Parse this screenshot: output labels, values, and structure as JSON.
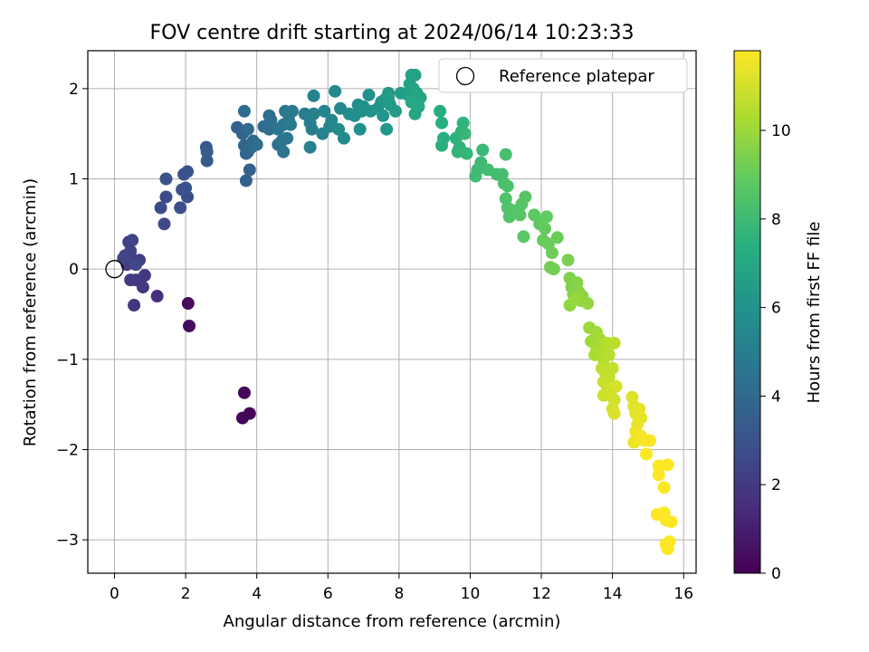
{
  "chart_data": {
    "type": "scatter",
    "title": "FOV centre drift starting at 2024/06/14 10:23:33",
    "xlabel": "Angular distance from reference (arcmin)",
    "ylabel": "Rotation from reference (arcmin)",
    "xlim": [
      -0.75,
      16.35
    ],
    "ylim": [
      -3.37,
      2.42
    ],
    "xticks": [
      0,
      2,
      4,
      6,
      8,
      10,
      12,
      14,
      16
    ],
    "yticks": [
      -3,
      -2,
      -1,
      0,
      1,
      2
    ],
    "grid": true,
    "legend": {
      "placement": "top-right",
      "entries": [
        "Reference platepar"
      ]
    },
    "reference_point": {
      "x": 0,
      "y": 0,
      "label": "Reference platepar"
    },
    "colorbar": {
      "label": "Hours from first FF file",
      "min": 0,
      "max": 11.8,
      "ticks": [
        0,
        2,
        4,
        6,
        8,
        10
      ],
      "colormap": "viridis"
    },
    "color_variable": "hours",
    "points": [
      {
        "x": 3.6,
        "y": -1.65,
        "c": 0.1
      },
      {
        "x": 3.8,
        "y": -1.6,
        "c": 0.15
      },
      {
        "x": 3.65,
        "y": -1.37,
        "c": 0.2
      },
      {
        "x": 2.1,
        "y": -0.63,
        "c": 0.3
      },
      {
        "x": 2.07,
        "y": -0.38,
        "c": 0.35
      },
      {
        "x": 1.2,
        "y": -0.3,
        "c": 1.6
      },
      {
        "x": 0.55,
        "y": -0.4,
        "c": 1.8
      },
      {
        "x": 0.8,
        "y": -0.2,
        "c": 1.9
      },
      {
        "x": 0.85,
        "y": -0.07,
        "c": 1.95
      },
      {
        "x": 0.6,
        "y": -0.12,
        "c": 2.0
      },
      {
        "x": 0.45,
        "y": -0.12,
        "c": 2.05
      },
      {
        "x": 0.7,
        "y": 0.1,
        "c": 2.1
      },
      {
        "x": 0.35,
        "y": 0.05,
        "c": 2.15
      },
      {
        "x": 0.5,
        "y": 0.1,
        "c": 2.2
      },
      {
        "x": 0.3,
        "y": 0.15,
        "c": 2.25
      },
      {
        "x": 0.45,
        "y": 0.2,
        "c": 2.3
      },
      {
        "x": 0.4,
        "y": 0.3,
        "c": 2.35
      },
      {
        "x": 0.5,
        "y": 0.32,
        "c": 2.4
      },
      {
        "x": 0.25,
        "y": 0.12,
        "c": 2.45
      },
      {
        "x": 0.6,
        "y": 0.05,
        "c": 2.5
      },
      {
        "x": 1.4,
        "y": 0.5,
        "c": 2.6
      },
      {
        "x": 1.3,
        "y": 0.68,
        "c": 2.65
      },
      {
        "x": 1.45,
        "y": 0.8,
        "c": 2.7
      },
      {
        "x": 1.85,
        "y": 0.68,
        "c": 2.75
      },
      {
        "x": 2.05,
        "y": 0.8,
        "c": 2.8
      },
      {
        "x": 1.9,
        "y": 0.88,
        "c": 2.85
      },
      {
        "x": 2.0,
        "y": 0.9,
        "c": 2.9
      },
      {
        "x": 1.45,
        "y": 1.0,
        "c": 2.95
      },
      {
        "x": 1.95,
        "y": 1.05,
        "c": 3.0
      },
      {
        "x": 2.05,
        "y": 1.08,
        "c": 3.05
      },
      {
        "x": 2.6,
        "y": 1.2,
        "c": 3.3
      },
      {
        "x": 2.6,
        "y": 1.3,
        "c": 3.35
      },
      {
        "x": 2.58,
        "y": 1.35,
        "c": 3.4
      },
      {
        "x": 3.8,
        "y": 1.1,
        "c": 3.6
      },
      {
        "x": 3.7,
        "y": 0.98,
        "c": 3.65
      },
      {
        "x": 3.45,
        "y": 1.57,
        "c": 3.7
      },
      {
        "x": 3.6,
        "y": 1.5,
        "c": 3.75
      },
      {
        "x": 3.65,
        "y": 1.37,
        "c": 3.8
      },
      {
        "x": 3.75,
        "y": 1.3,
        "c": 3.85
      },
      {
        "x": 3.7,
        "y": 1.28,
        "c": 3.9
      },
      {
        "x": 3.85,
        "y": 1.35,
        "c": 3.95
      },
      {
        "x": 3.9,
        "y": 1.42,
        "c": 4.0
      },
      {
        "x": 3.75,
        "y": 1.55,
        "c": 4.05
      },
      {
        "x": 3.65,
        "y": 1.75,
        "c": 4.1
      },
      {
        "x": 4.0,
        "y": 1.38,
        "c": 4.15
      },
      {
        "x": 4.2,
        "y": 1.58,
        "c": 4.2
      },
      {
        "x": 4.35,
        "y": 1.55,
        "c": 4.25
      },
      {
        "x": 4.4,
        "y": 1.65,
        "c": 4.3
      },
      {
        "x": 4.35,
        "y": 1.7,
        "c": 4.35
      },
      {
        "x": 4.6,
        "y": 1.38,
        "c": 4.4
      },
      {
        "x": 4.75,
        "y": 1.3,
        "c": 4.45
      },
      {
        "x": 4.7,
        "y": 1.42,
        "c": 4.5
      },
      {
        "x": 4.85,
        "y": 1.45,
        "c": 4.55
      },
      {
        "x": 4.6,
        "y": 1.55,
        "c": 4.6
      },
      {
        "x": 4.75,
        "y": 1.6,
        "c": 4.65
      },
      {
        "x": 4.9,
        "y": 1.65,
        "c": 4.7
      },
      {
        "x": 4.8,
        "y": 1.75,
        "c": 4.75
      },
      {
        "x": 5.0,
        "y": 1.75,
        "c": 4.8
      },
      {
        "x": 4.95,
        "y": 1.6,
        "c": 4.85
      },
      {
        "x": 5.35,
        "y": 1.72,
        "c": 4.9
      },
      {
        "x": 5.5,
        "y": 1.62,
        "c": 5.0
      },
      {
        "x": 5.55,
        "y": 1.55,
        "c": 5.05
      },
      {
        "x": 5.5,
        "y": 1.35,
        "c": 5.1
      },
      {
        "x": 5.6,
        "y": 1.72,
        "c": 5.15
      },
      {
        "x": 5.6,
        "y": 1.92,
        "c": 5.2
      },
      {
        "x": 5.85,
        "y": 1.5,
        "c": 5.25
      },
      {
        "x": 5.9,
        "y": 1.75,
        "c": 5.3
      },
      {
        "x": 6.05,
        "y": 1.58,
        "c": 5.35
      },
      {
        "x": 6.1,
        "y": 1.65,
        "c": 5.4
      },
      {
        "x": 6.2,
        "y": 1.97,
        "c": 5.45
      },
      {
        "x": 6.35,
        "y": 1.78,
        "c": 5.5
      },
      {
        "x": 6.3,
        "y": 1.55,
        "c": 5.55
      },
      {
        "x": 6.45,
        "y": 1.45,
        "c": 5.6
      },
      {
        "x": 6.6,
        "y": 1.72,
        "c": 5.65
      },
      {
        "x": 6.75,
        "y": 1.7,
        "c": 5.7
      },
      {
        "x": 6.85,
        "y": 1.82,
        "c": 5.75
      },
      {
        "x": 6.95,
        "y": 1.75,
        "c": 5.8
      },
      {
        "x": 6.9,
        "y": 1.55,
        "c": 5.85
      },
      {
        "x": 7.0,
        "y": 1.8,
        "c": 5.9
      },
      {
        "x": 7.15,
        "y": 1.93,
        "c": 5.95
      },
      {
        "x": 7.2,
        "y": 1.75,
        "c": 6.0
      },
      {
        "x": 7.4,
        "y": 1.78,
        "c": 6.05
      },
      {
        "x": 7.5,
        "y": 1.85,
        "c": 6.1
      },
      {
        "x": 7.55,
        "y": 1.7,
        "c": 6.15
      },
      {
        "x": 7.6,
        "y": 1.88,
        "c": 6.2
      },
      {
        "x": 7.7,
        "y": 1.95,
        "c": 6.25
      },
      {
        "x": 7.65,
        "y": 1.55,
        "c": 6.3
      },
      {
        "x": 7.75,
        "y": 1.82,
        "c": 6.35
      },
      {
        "x": 7.9,
        "y": 1.75,
        "c": 6.4
      },
      {
        "x": 7.7,
        "y": 1.9,
        "c": 6.45
      },
      {
        "x": 8.05,
        "y": 1.95,
        "c": 6.5
      },
      {
        "x": 8.25,
        "y": 1.93,
        "c": 6.6
      },
      {
        "x": 8.3,
        "y": 2.05,
        "c": 6.65
      },
      {
        "x": 8.35,
        "y": 2.15,
        "c": 6.7
      },
      {
        "x": 8.45,
        "y": 2.15,
        "c": 6.75
      },
      {
        "x": 8.4,
        "y": 2.0,
        "c": 6.8
      },
      {
        "x": 8.5,
        "y": 1.95,
        "c": 6.85
      },
      {
        "x": 8.6,
        "y": 1.9,
        "c": 6.9
      },
      {
        "x": 8.45,
        "y": 1.72,
        "c": 6.95
      },
      {
        "x": 8.55,
        "y": 1.8,
        "c": 7.0
      },
      {
        "x": 8.35,
        "y": 1.85,
        "c": 7.05
      },
      {
        "x": 9.15,
        "y": 1.75,
        "c": 7.3
      },
      {
        "x": 9.2,
        "y": 1.62,
        "c": 7.35
      },
      {
        "x": 9.25,
        "y": 1.45,
        "c": 7.4
      },
      {
        "x": 9.2,
        "y": 1.37,
        "c": 7.45
      },
      {
        "x": 9.6,
        "y": 1.45,
        "c": 7.5
      },
      {
        "x": 9.7,
        "y": 1.35,
        "c": 7.55
      },
      {
        "x": 9.75,
        "y": 1.52,
        "c": 7.6
      },
      {
        "x": 9.8,
        "y": 1.62,
        "c": 7.65
      },
      {
        "x": 9.65,
        "y": 1.3,
        "c": 7.7
      },
      {
        "x": 9.9,
        "y": 1.28,
        "c": 7.75
      },
      {
        "x": 9.85,
        "y": 1.5,
        "c": 7.8
      },
      {
        "x": 10.35,
        "y": 1.32,
        "c": 7.9
      },
      {
        "x": 10.3,
        "y": 1.18,
        "c": 7.95
      },
      {
        "x": 10.2,
        "y": 1.1,
        "c": 8.0
      },
      {
        "x": 10.15,
        "y": 1.03,
        "c": 8.05
      },
      {
        "x": 10.5,
        "y": 1.1,
        "c": 8.1
      },
      {
        "x": 10.75,
        "y": 1.05,
        "c": 8.15
      },
      {
        "x": 10.9,
        "y": 1.05,
        "c": 8.2
      },
      {
        "x": 11.0,
        "y": 1.27,
        "c": 8.25
      },
      {
        "x": 10.95,
        "y": 0.95,
        "c": 8.3
      },
      {
        "x": 11.05,
        "y": 0.92,
        "c": 8.35
      },
      {
        "x": 11.0,
        "y": 0.78,
        "c": 8.4
      },
      {
        "x": 11.05,
        "y": 0.68,
        "c": 8.45
      },
      {
        "x": 11.1,
        "y": 0.58,
        "c": 8.5
      },
      {
        "x": 11.2,
        "y": 0.65,
        "c": 8.55
      },
      {
        "x": 11.45,
        "y": 0.72,
        "c": 8.6
      },
      {
        "x": 11.55,
        "y": 0.8,
        "c": 8.65
      },
      {
        "x": 11.4,
        "y": 0.6,
        "c": 8.7
      },
      {
        "x": 11.5,
        "y": 0.36,
        "c": 8.75
      },
      {
        "x": 11.8,
        "y": 0.6,
        "c": 8.8
      },
      {
        "x": 11.95,
        "y": 0.5,
        "c": 8.85
      },
      {
        "x": 12.15,
        "y": 0.58,
        "c": 8.9
      },
      {
        "x": 12.1,
        "y": 0.45,
        "c": 8.95
      },
      {
        "x": 12.05,
        "y": 0.32,
        "c": 9.0
      },
      {
        "x": 12.2,
        "y": 0.28,
        "c": 9.05
      },
      {
        "x": 12.45,
        "y": 0.35,
        "c": 9.1
      },
      {
        "x": 12.3,
        "y": 0.18,
        "c": 9.15
      },
      {
        "x": 12.35,
        "y": 0.0,
        "c": 9.2
      },
      {
        "x": 12.25,
        "y": 0.02,
        "c": 9.25
      },
      {
        "x": 12.75,
        "y": 0.1,
        "c": 9.4
      },
      {
        "x": 12.8,
        "y": -0.1,
        "c": 9.45
      },
      {
        "x": 12.85,
        "y": -0.2,
        "c": 9.5
      },
      {
        "x": 12.9,
        "y": -0.28,
        "c": 9.55
      },
      {
        "x": 13.0,
        "y": -0.15,
        "c": 9.6
      },
      {
        "x": 13.05,
        "y": -0.25,
        "c": 9.65
      },
      {
        "x": 13.15,
        "y": -0.3,
        "c": 9.7
      },
      {
        "x": 13.1,
        "y": -0.35,
        "c": 9.75
      },
      {
        "x": 12.8,
        "y": -0.4,
        "c": 9.8
      },
      {
        "x": 13.3,
        "y": -0.38,
        "c": 9.85
      },
      {
        "x": 12.95,
        "y": -0.33,
        "c": 9.9
      },
      {
        "x": 13.35,
        "y": -0.65,
        "c": 10.0
      },
      {
        "x": 13.4,
        "y": -0.8,
        "c": 10.05
      },
      {
        "x": 13.55,
        "y": -0.7,
        "c": 10.1
      },
      {
        "x": 13.6,
        "y": -0.85,
        "c": 10.15
      },
      {
        "x": 13.65,
        "y": -0.78,
        "c": 10.2
      },
      {
        "x": 13.55,
        "y": -0.9,
        "c": 10.25
      },
      {
        "x": 13.5,
        "y": -0.95,
        "c": 10.3
      },
      {
        "x": 13.7,
        "y": -0.93,
        "c": 10.35
      },
      {
        "x": 13.75,
        "y": -1.0,
        "c": 10.4
      },
      {
        "x": 13.85,
        "y": -0.82,
        "c": 10.45
      },
      {
        "x": 13.9,
        "y": -0.95,
        "c": 10.5
      },
      {
        "x": 14.05,
        "y": -0.82,
        "c": 10.55
      },
      {
        "x": 13.7,
        "y": -1.1,
        "c": 10.6
      },
      {
        "x": 13.8,
        "y": -1.15,
        "c": 10.65
      },
      {
        "x": 13.9,
        "y": -1.2,
        "c": 10.7
      },
      {
        "x": 14.0,
        "y": -1.1,
        "c": 10.75
      },
      {
        "x": 13.75,
        "y": -1.25,
        "c": 10.8
      },
      {
        "x": 13.85,
        "y": -1.35,
        "c": 10.85
      },
      {
        "x": 13.75,
        "y": -1.4,
        "c": 10.9
      },
      {
        "x": 13.95,
        "y": -1.4,
        "c": 10.95
      },
      {
        "x": 14.05,
        "y": -1.45,
        "c": 11.0
      },
      {
        "x": 14.0,
        "y": -1.55,
        "c": 11.05
      },
      {
        "x": 14.1,
        "y": -1.3,
        "c": 11.1
      },
      {
        "x": 14.05,
        "y": -1.6,
        "c": 11.15
      },
      {
        "x": 14.55,
        "y": -1.42,
        "c": 11.2
      },
      {
        "x": 14.6,
        "y": -1.52,
        "c": 11.25
      },
      {
        "x": 14.65,
        "y": -1.6,
        "c": 11.3
      },
      {
        "x": 14.75,
        "y": -1.55,
        "c": 11.35
      },
      {
        "x": 14.8,
        "y": -1.65,
        "c": 11.4
      },
      {
        "x": 14.7,
        "y": -1.72,
        "c": 11.45
      },
      {
        "x": 14.65,
        "y": -1.8,
        "c": 11.5
      },
      {
        "x": 14.6,
        "y": -1.92,
        "c": 11.55
      },
      {
        "x": 14.8,
        "y": -1.85,
        "c": 11.6
      },
      {
        "x": 14.9,
        "y": -1.9,
        "c": 11.65
      },
      {
        "x": 15.05,
        "y": -1.9,
        "c": 11.7
      },
      {
        "x": 14.95,
        "y": -2.05,
        "c": 11.75
      },
      {
        "x": 15.3,
        "y": -2.18,
        "c": 11.75
      },
      {
        "x": 15.3,
        "y": -2.28,
        "c": 11.78
      },
      {
        "x": 15.55,
        "y": -2.17,
        "c": 11.78
      },
      {
        "x": 15.45,
        "y": -2.42,
        "c": 11.8
      },
      {
        "x": 15.25,
        "y": -2.72,
        "c": 11.8
      },
      {
        "x": 15.45,
        "y": -2.7,
        "c": 11.8
      },
      {
        "x": 15.5,
        "y": -2.78,
        "c": 11.8
      },
      {
        "x": 15.65,
        "y": -2.8,
        "c": 11.8
      },
      {
        "x": 15.6,
        "y": -3.02,
        "c": 11.8
      },
      {
        "x": 15.55,
        "y": -3.1,
        "c": 11.8
      },
      {
        "x": 15.5,
        "y": -3.05,
        "c": 11.8
      }
    ]
  }
}
